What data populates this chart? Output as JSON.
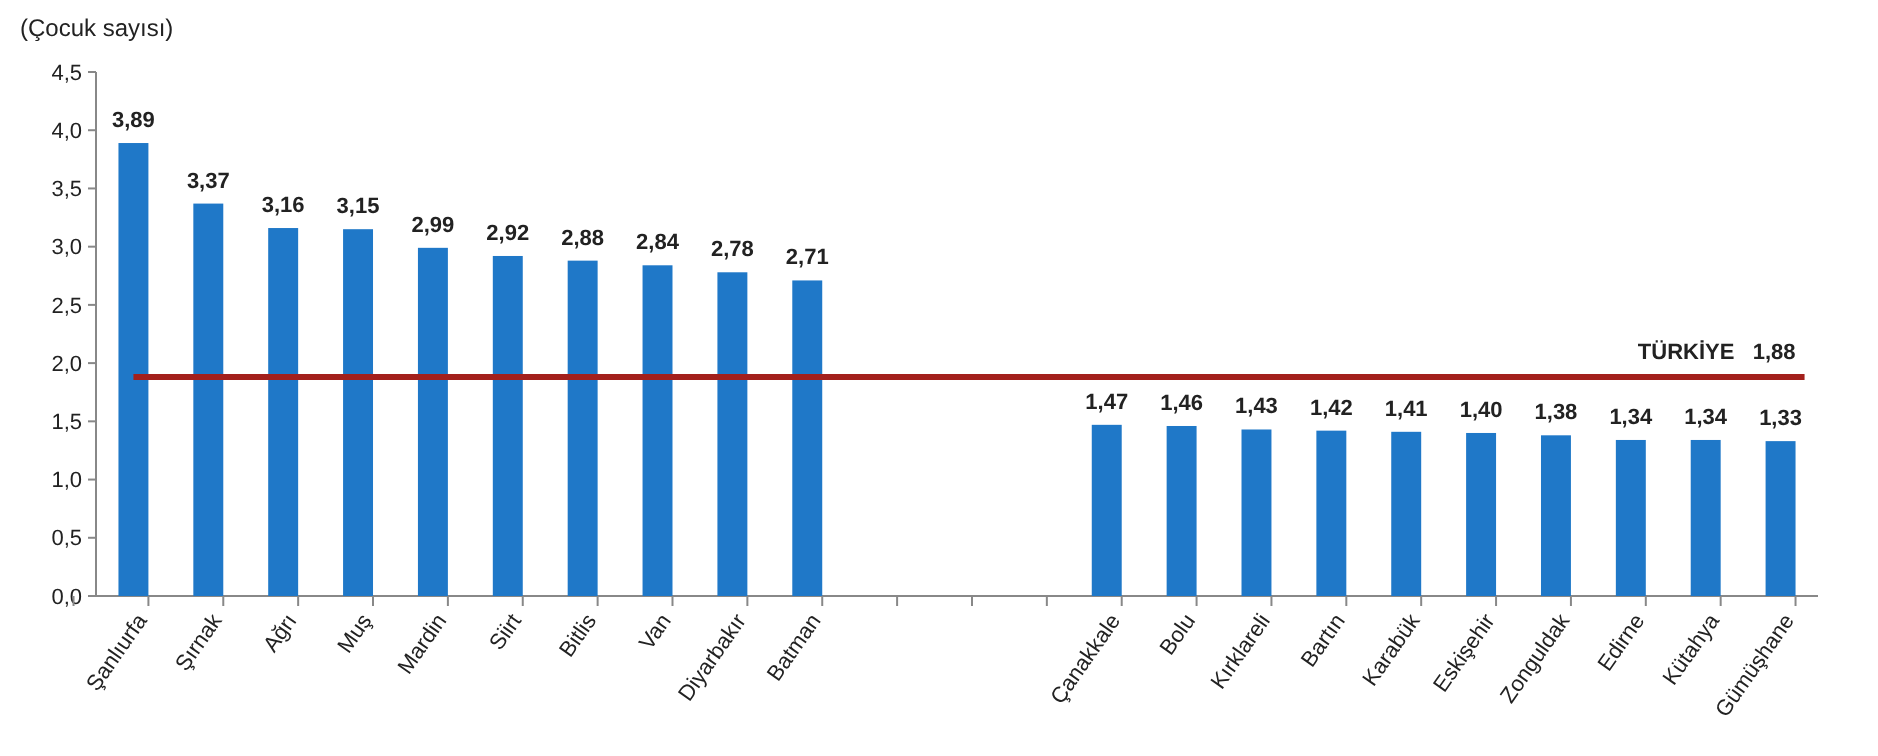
{
  "chart_data": {
    "type": "bar",
    "ylabel": "(Çocuk sayısı)",
    "categories": [
      "Şanlıurfa",
      "Şırnak",
      "Ağrı",
      "Muş",
      "Mardin",
      "Siirt",
      "Bitlis",
      "Van",
      "Diyarbakır",
      "Batman",
      null,
      null,
      null,
      "Çanakkale",
      "Bolu",
      "Kırklareli",
      "Bartın",
      "Karabük",
      "Eskişehir",
      "Zonguldak",
      "Edirne",
      "Kütahya",
      "Gümüşhane"
    ],
    "values": [
      3.89,
      3.37,
      3.16,
      3.15,
      2.99,
      2.92,
      2.88,
      2.84,
      2.78,
      2.71,
      null,
      null,
      null,
      1.47,
      1.46,
      1.43,
      1.42,
      1.41,
      1.4,
      1.38,
      1.34,
      1.34,
      1.33
    ],
    "value_labels": [
      "3,89",
      "3,37",
      "3,16",
      "3,15",
      "2,99",
      "2,92",
      "2,88",
      "2,84",
      "2,78",
      "2,71",
      null,
      null,
      null,
      "1,47",
      "1,46",
      "1,43",
      "1,42",
      "1,41",
      "1,40",
      "1,38",
      "1,34",
      "1,34",
      "1,33"
    ],
    "color": "#1f78c8",
    "ylim": [
      0,
      4.5
    ],
    "yticks": [
      {
        "value": 0,
        "label": "0,0"
      },
      {
        "value": 0.5,
        "label": "0,5"
      },
      {
        "value": 1,
        "label": "1,0"
      },
      {
        "value": 1.5,
        "label": "1,5"
      },
      {
        "value": 2,
        "label": "2,0"
      },
      {
        "value": 2.5,
        "label": "2,5"
      },
      {
        "value": 3,
        "label": "3,0"
      },
      {
        "value": 3.5,
        "label": "3,5"
      },
      {
        "value": 4,
        "label": "4,0"
      },
      {
        "value": 4.5,
        "label": "4,5"
      }
    ],
    "ref_lines": [
      {
        "axis": "y",
        "value": 1.88,
        "label": "TÜRKİYE   1,88",
        "color": "#a3201c"
      }
    ],
    "grid": false
  }
}
